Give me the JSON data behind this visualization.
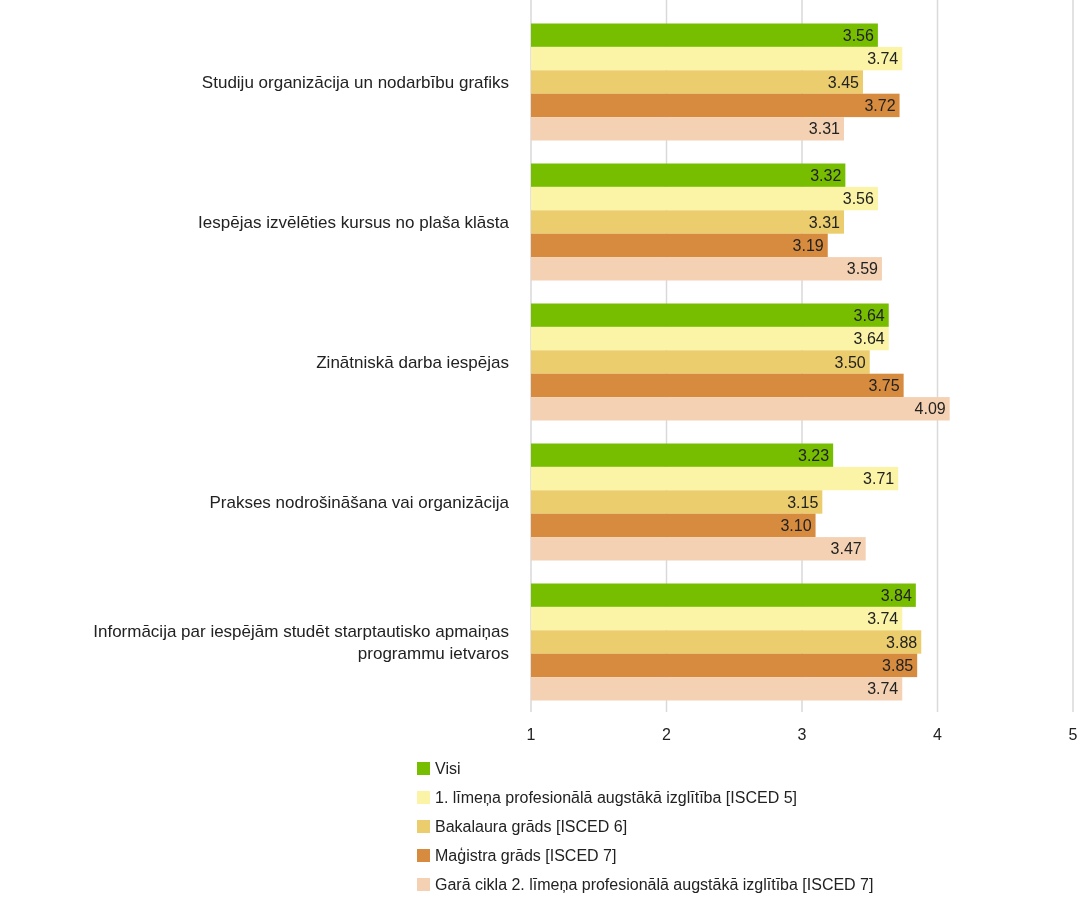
{
  "chart_data": {
    "type": "bar",
    "orientation": "horizontal",
    "categories": [
      "Studiju organizācija un nodarbību grafiks",
      "Iespējas izvēlēties kursus no plaša klāsta",
      "Zinātniskā darba iespējas",
      "Prakses nodrošināšana vai organizācija",
      "Informācija par iespējām studēt starptautisko apmaiņas programmu ietvaros"
    ],
    "series": [
      {
        "name": "Visi",
        "color": "#77bd00",
        "values": [
          3.56,
          3.32,
          3.64,
          3.23,
          3.84
        ],
        "value_labels": [
          "3.56",
          "3.32",
          "3.64",
          "3.23",
          "3.84"
        ]
      },
      {
        "name": "1. līmeņa profesionālā augstākā izglītība [ISCED 5]",
        "color": "#fbf3a6",
        "values": [
          3.74,
          3.56,
          3.64,
          3.71,
          3.74
        ],
        "value_labels": [
          "3.74",
          "3.56",
          "3.64",
          "3.71",
          "3.74"
        ]
      },
      {
        "name": "Bakalaura grāds [ISCED 6]",
        "color": "#ebcd6d",
        "values": [
          3.45,
          3.31,
          3.5,
          3.15,
          3.88
        ],
        "value_labels": [
          "3.45",
          "3.31",
          "3.50",
          "3.15",
          "3.88"
        ]
      },
      {
        "name": "Maģistra grāds [ISCED 7]",
        "color": "#d68b3e",
        "values": [
          3.72,
          3.19,
          3.75,
          3.1,
          3.85
        ],
        "value_labels": [
          "3.72",
          "3.19",
          "3.75",
          "3.10",
          "3.85"
        ]
      },
      {
        "name": "Garā cikla 2. līmeņa profesionālā augstākā izglītība [ISCED 7]",
        "color": "#f4d1b3",
        "values": [
          3.31,
          3.59,
          4.09,
          3.47,
          3.74
        ],
        "value_labels": [
          "3.31",
          "3.59",
          "4.09",
          "3.47",
          "3.74"
        ]
      }
    ],
    "xlim": [
      1,
      5
    ],
    "xticks": [
      1,
      2,
      3,
      4,
      5
    ],
    "grid": "x",
    "legend": "bottom"
  }
}
